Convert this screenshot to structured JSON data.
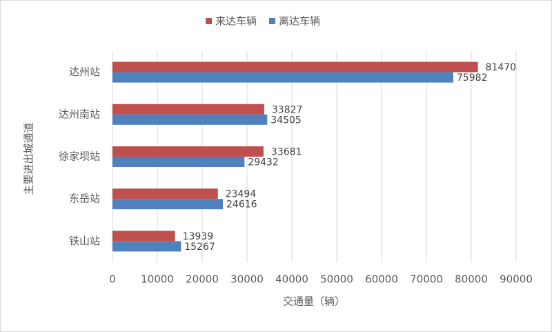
{
  "chart_data": {
    "type": "hbar",
    "categories": [
      "达州站",
      "达州南站",
      "徐家坝站",
      "东岳站",
      "铁山站"
    ],
    "series": [
      {
        "name": "来达车辆",
        "color": "#c0504d",
        "values": [
          81470,
          33827,
          33681,
          23494,
          13939
        ]
      },
      {
        "name": "离达车辆",
        "color": "#4f81bd",
        "values": [
          75982,
          34505,
          29432,
          24616,
          15267
        ]
      }
    ],
    "xlim": [
      0,
      90000
    ],
    "xticks": [
      0,
      10000,
      20000,
      30000,
      40000,
      50000,
      60000,
      70000,
      80000,
      90000
    ],
    "x_label": "交通量（辆）",
    "y_label": "主要进出城通道",
    "grid": true,
    "legend": "top"
  }
}
